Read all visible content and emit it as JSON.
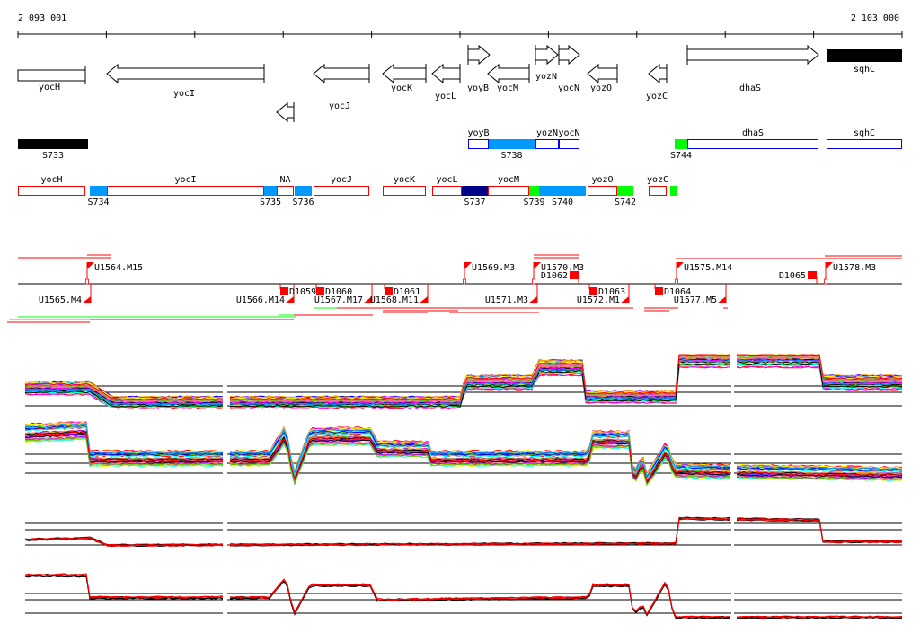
{
  "ruler": {
    "start_label": "2 093 001",
    "end_label": "2 103 000"
  },
  "genes": [
    {
      "name": "yocH",
      "strand": "none"
    },
    {
      "name": "yocI",
      "strand": "-"
    },
    {
      "name": "",
      "strand": "-"
    },
    {
      "name": "yocJ",
      "strand": "-"
    },
    {
      "name": "yocK",
      "strand": "-"
    },
    {
      "name": "yocL",
      "strand": "-"
    },
    {
      "name": "yoyB",
      "strand": "+"
    },
    {
      "name": "yocM",
      "strand": "-"
    },
    {
      "name": "yozN",
      "strand": "+"
    },
    {
      "name": "yocN",
      "strand": "+"
    },
    {
      "name": "yozO",
      "strand": "-"
    },
    {
      "name": "yozC",
      "strand": "-"
    },
    {
      "name": "dhaS",
      "strand": "+"
    },
    {
      "name": "sqhC",
      "strand": "filled"
    }
  ],
  "plus_segments": [
    {
      "label": "S733",
      "type": "black"
    },
    {
      "label": "yoyB",
      "type": "outline"
    },
    {
      "label": "S738",
      "type": "blue"
    },
    {
      "label": "yozN",
      "type": "outline"
    },
    {
      "label": "yocN",
      "type": "outline"
    },
    {
      "label": "S744",
      "type": "green"
    },
    {
      "label": "dhaS",
      "type": "outline"
    },
    {
      "label": "sqhC",
      "type": "outline"
    }
  ],
  "minus_segments": [
    {
      "label": "yocH",
      "type": "outline"
    },
    {
      "label": "S734",
      "type": "blue"
    },
    {
      "label": "yocI",
      "type": "outline"
    },
    {
      "label": "S735",
      "type": "blue"
    },
    {
      "label": "NA",
      "type": "outline"
    },
    {
      "label": "S736",
      "type": "blue"
    },
    {
      "label": "yocJ",
      "type": "outline"
    },
    {
      "label": "yocK",
      "type": "outline"
    },
    {
      "label": "yocL",
      "type": "outline"
    },
    {
      "label": "S737",
      "type": "navy"
    },
    {
      "label": "yocM",
      "type": "outline"
    },
    {
      "label": "S739",
      "type": "green"
    },
    {
      "label": "S740",
      "type": "blue"
    },
    {
      "label": "yozO",
      "type": "outline"
    },
    {
      "label": "S742",
      "type": "green"
    },
    {
      "label": "yozC",
      "type": "outline"
    },
    {
      "label": "",
      "type": "green"
    }
  ],
  "upstream_features": [
    "U1564.M15",
    "U1569.M3",
    "U1570.M3",
    "D1062",
    "U1575.M14",
    "D1065",
    "U1578.M3"
  ],
  "downstream_features": [
    "U1565.M4",
    "U1566.M14",
    "D1059",
    "D1060",
    "U1567.M17",
    "U1568.M11",
    "D1061",
    "U1571.M3",
    "U1572.M1",
    "D1063",
    "D1064",
    "U1577.M5"
  ],
  "colors": {
    "outline_plus": "#0000ff",
    "outline_minus": "#ff0000",
    "blue": "#0099ff",
    "navy": "#000088",
    "green": "#00ff00",
    "feature": "#ff0000"
  }
}
